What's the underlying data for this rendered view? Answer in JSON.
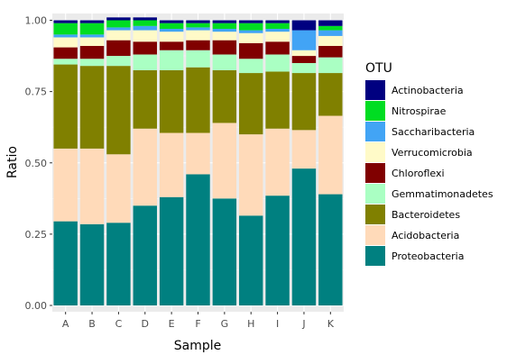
{
  "chart_data": {
    "type": "bar",
    "stacked": true,
    "xlabel": "Sample",
    "ylabel": "Ratio",
    "ylim": [
      0,
      1
    ],
    "yticks": [
      0,
      0.25,
      0.5,
      0.75,
      1
    ],
    "ytick_labels": [
      "0.00",
      "0.25",
      "0.50",
      "0.75",
      "1.00"
    ],
    "categories": [
      "A",
      "B",
      "C",
      "D",
      "E",
      "F",
      "G",
      "H",
      "I",
      "J",
      "K"
    ],
    "legend_title": "OTU",
    "legend_position": "right",
    "series": [
      {
        "name": "Proteobacteria",
        "color": "#008080",
        "values": [
          0.295,
          0.285,
          0.29,
          0.35,
          0.38,
          0.46,
          0.375,
          0.315,
          0.385,
          0.48,
          0.39
        ]
      },
      {
        "name": "Acidobacteria",
        "color": "#FFDAB9",
        "values": [
          0.255,
          0.265,
          0.24,
          0.27,
          0.225,
          0.145,
          0.265,
          0.285,
          0.235,
          0.135,
          0.275
        ]
      },
      {
        "name": "Bacteroidetes",
        "color": "#808000",
        "values": [
          0.295,
          0.29,
          0.31,
          0.205,
          0.22,
          0.23,
          0.185,
          0.215,
          0.2,
          0.2,
          0.15
        ]
      },
      {
        "name": "Gemmatimonadetes",
        "color": "#AAFFC3",
        "values": [
          0.02,
          0.025,
          0.035,
          0.055,
          0.07,
          0.06,
          0.055,
          0.05,
          0.06,
          0.035,
          0.055
        ]
      },
      {
        "name": "Chloroflexi",
        "color": "#800000",
        "values": [
          0.04,
          0.045,
          0.055,
          0.045,
          0.03,
          0.035,
          0.05,
          0.055,
          0.045,
          0.025,
          0.04
        ]
      },
      {
        "name": "Verrucomicrobia",
        "color": "#FFFAC8",
        "values": [
          0.035,
          0.03,
          0.035,
          0.04,
          0.035,
          0.035,
          0.03,
          0.035,
          0.035,
          0.02,
          0.035
        ]
      },
      {
        "name": "Saccharibacteria",
        "color": "#42A4F5",
        "values": [
          0.01,
          0.01,
          0.01,
          0.015,
          0.01,
          0.01,
          0.01,
          0.01,
          0.01,
          0.07,
          0.02
        ]
      },
      {
        "name": "Nitrospirae",
        "color": "#00DD22",
        "values": [
          0.04,
          0.04,
          0.025,
          0.02,
          0.02,
          0.015,
          0.02,
          0.025,
          0.02,
          0.0,
          0.015
        ]
      },
      {
        "name": "Actinobacteria",
        "color": "#000080",
        "values": [
          0.01,
          0.01,
          0.01,
          0.01,
          0.01,
          0.01,
          0.01,
          0.01,
          0.01,
          0.035,
          0.02
        ]
      }
    ],
    "legend_order": [
      "Actinobacteria",
      "Nitrospirae",
      "Saccharibacteria",
      "Verrucomicrobia",
      "Chloroflexi",
      "Gemmatimonadetes",
      "Bacteroidetes",
      "Acidobacteria",
      "Proteobacteria"
    ],
    "panel_background": "#EBEBEB",
    "grid": true
  }
}
